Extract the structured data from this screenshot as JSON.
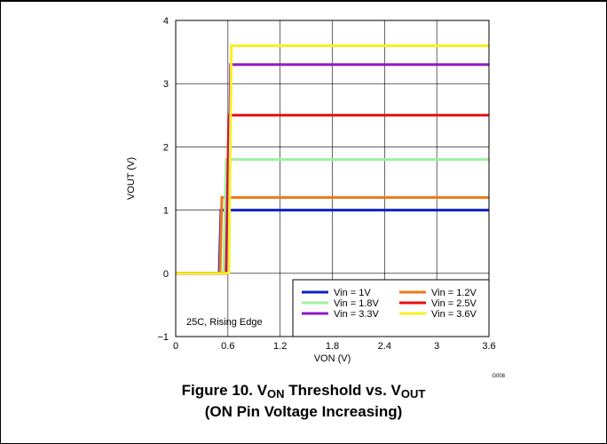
{
  "caption": {
    "line1_prefix": "Figure 10. V",
    "line1_sub1": "ON",
    "line1_mid": " Threshold vs. V",
    "line1_sub2": "OUT",
    "line2": "(ON Pin Voltage Increasing)"
  },
  "figure_code": "G008",
  "chart_data": {
    "type": "line",
    "xlabel": "VON (V)",
    "ylabel": "VOUT (V)",
    "xlim": [
      0,
      3.6
    ],
    "ylim": [
      -1,
      4
    ],
    "xticks": [
      "0",
      "0.6",
      "1.2",
      "1.8",
      "2.4",
      "3",
      "3.6"
    ],
    "yticks": [
      "−1",
      "0",
      "1",
      "2",
      "3",
      "4"
    ],
    "grid": true,
    "annotation": "25C, Rising Edge",
    "legend_position": "bottom-right",
    "series": [
      {
        "name": "Vin = 1V",
        "color": "#1020c8",
        "x": [
          0,
          0.5,
          0.52,
          3.6
        ],
        "y": [
          0,
          0,
          1.0,
          1.0
        ]
      },
      {
        "name": "Vin = 1.2V",
        "color": "#f07818",
        "x": [
          0,
          0.51,
          0.53,
          3.6
        ],
        "y": [
          0,
          0,
          1.2,
          1.2
        ]
      },
      {
        "name": "Vin = 1.8V",
        "color": "#a0f0a0",
        "x": [
          0,
          0.55,
          0.58,
          3.6
        ],
        "y": [
          0,
          0,
          1.8,
          1.8
        ]
      },
      {
        "name": "Vin = 2.5V",
        "color": "#e81010",
        "x": [
          0,
          0.58,
          0.61,
          3.6
        ],
        "y": [
          0,
          0,
          2.5,
          2.5
        ]
      },
      {
        "name": "Vin = 3.3V",
        "color": "#9018c8",
        "x": [
          0,
          0.6,
          0.63,
          3.6
        ],
        "y": [
          0,
          0,
          3.3,
          3.3
        ]
      },
      {
        "name": "Vin = 3.6V",
        "color": "#f8f020",
        "x": [
          0,
          0.61,
          0.64,
          3.6
        ],
        "y": [
          0,
          0,
          3.6,
          3.6
        ]
      }
    ]
  }
}
